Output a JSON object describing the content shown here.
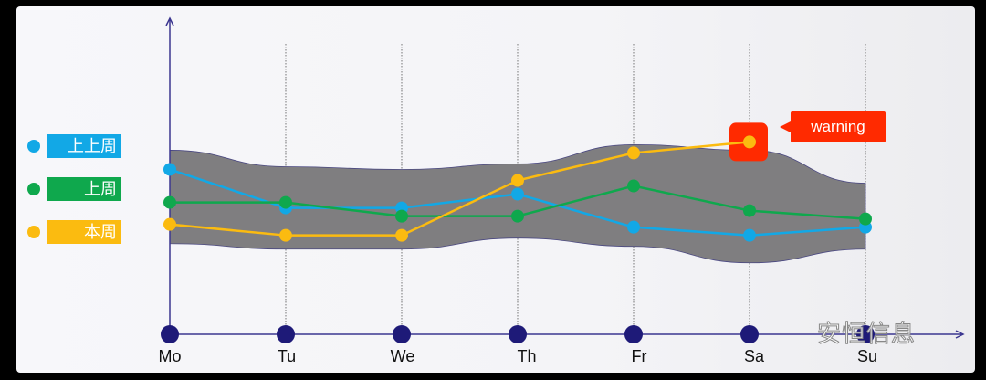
{
  "chart_data": {
    "type": "line",
    "categories": [
      "Mo",
      "Tu",
      "We",
      "Th",
      "Fr",
      "Sa",
      "Su"
    ],
    "ylim": [
      0,
      115
    ],
    "grid": "vertical dotted lines at each category",
    "legend_placement": "left",
    "series": [
      {
        "name": "上上周",
        "color": "#12a8e6",
        "values": [
          60,
          46,
          46,
          51,
          39,
          36,
          39
        ]
      },
      {
        "name": "上周",
        "color": "#0fa84d",
        "values": [
          48,
          48,
          43,
          43,
          54,
          45,
          42
        ]
      },
      {
        "name": "本周",
        "color": "#fbbb10",
        "values": [
          40,
          36,
          36,
          56,
          66,
          70,
          null
        ]
      }
    ],
    "band": {
      "color": "#7f7e80",
      "upper": [
        67,
        61,
        60,
        62,
        69,
        67,
        55
      ],
      "lower": [
        33,
        31,
        31,
        35,
        32,
        26,
        31
      ]
    },
    "annotation": {
      "text": "warning",
      "category": "Sa",
      "series": "本周",
      "color": "#ff2a00"
    }
  },
  "watermark": "安恒信息",
  "colors": {
    "axis": "#3b3690",
    "axis_dot": "#1e1a78"
  }
}
